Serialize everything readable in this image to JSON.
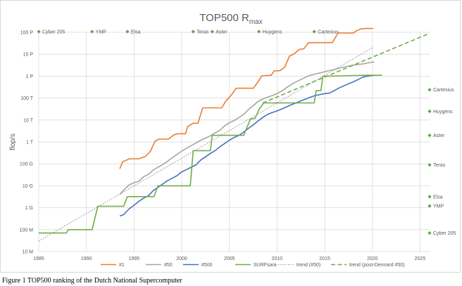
{
  "chart_data": {
    "type": "line",
    "title": "TOP500 R",
    "title_subscript": "max",
    "ylabel": "flop/s",
    "xlabel": "",
    "y_scale": "log",
    "xlim": [
      1985,
      2026
    ],
    "ylim": [
      10000000.0,
      1e+17
    ],
    "grid": true,
    "legend_position": "bottom",
    "x_ticks": [
      1985,
      1990,
      1995,
      2000,
      2005,
      2010,
      2015,
      2020,
      2025
    ],
    "y_ticks": [
      {
        "value": 10000000.0,
        "label": "10 M"
      },
      {
        "value": 100000000.0,
        "label": "100 M"
      },
      {
        "value": 1000000000.0,
        "label": "1 G"
      },
      {
        "value": 10000000000.0,
        "label": "10 G"
      },
      {
        "value": 100000000000.0,
        "label": "100 G"
      },
      {
        "value": 1000000000000.0,
        "label": "1 T"
      },
      {
        "value": 10000000000000.0,
        "label": "10 T"
      },
      {
        "value": 100000000000000.0,
        "label": "100 T"
      },
      {
        "value": 1000000000000000.0,
        "label": "1 P"
      },
      {
        "value": 1e+16,
        "label": "10 P"
      },
      {
        "value": 1e+17,
        "label": "100 P"
      }
    ],
    "series": [
      {
        "name": "#1",
        "color": "#ed7d31",
        "style": "solid",
        "points": [
          [
            1993.5,
            59700000000.0
          ],
          [
            1993.8,
            124000000000.0
          ],
          [
            1994.5,
            170000000000.0
          ],
          [
            1995.5,
            170000000000.0
          ],
          [
            1996.2,
            220000000000.0
          ],
          [
            1996.7,
            368000000000.0
          ],
          [
            1997.2,
            1070000000000.0
          ],
          [
            1997.6,
            1340000000000.0
          ],
          [
            1998.6,
            1340000000000.0
          ],
          [
            1999.2,
            2120000000000.0
          ],
          [
            1999.6,
            2380000000000.0
          ],
          [
            2000.4,
            2380000000000.0
          ],
          [
            2000.6,
            4940000000000.0
          ],
          [
            2001.2,
            7200000000000.0
          ],
          [
            2001.7,
            7200000000000.0
          ],
          [
            2002.2,
            35900000000000.0
          ],
          [
            2004.2,
            35900000000000.0
          ],
          [
            2004.6,
            70700000000000.0
          ],
          [
            2005.2,
            137000000000000.0
          ],
          [
            2005.7,
            281000000000000.0
          ],
          [
            2007.5,
            281000000000000.0
          ],
          [
            2007.9,
            478000000000000.0
          ],
          [
            2008.4,
            1030000000000000.0
          ],
          [
            2009.4,
            1100000000000000.0
          ],
          [
            2009.7,
            1760000000000000.0
          ],
          [
            2010.3,
            1760000000000000.0
          ],
          [
            2010.8,
            2570000000000000.0
          ],
          [
            2011.3,
            8160000000000000.0
          ],
          [
            2011.8,
            1.05e+16
          ],
          [
            2012.3,
            1.63e+16
          ],
          [
            2012.8,
            1.76e+16
          ],
          [
            2013.3,
            3.39e+16
          ],
          [
            2015.8,
            3.39e+16
          ],
          [
            2016.4,
            9.3e+16
          ],
          [
            2018.0,
            9.3e+16
          ],
          [
            2018.4,
            1.22e+17
          ],
          [
            2018.8,
            1.44e+17
          ],
          [
            2019.2,
            1.49e+17
          ],
          [
            2020.1,
            1.49e+17
          ]
        ]
      },
      {
        "name": "#50",
        "color": "#a5a5a5",
        "style": "solid",
        "points": [
          [
            1993.5,
            4000000000.0
          ],
          [
            1994.0,
            7000000000.0
          ],
          [
            1994.5,
            11000000000.0
          ],
          [
            1995.0,
            14000000000.0
          ],
          [
            1995.5,
            16000000000.0
          ],
          [
            1996.0,
            26000000000.0
          ],
          [
            1996.5,
            33000000000.0
          ],
          [
            1997.0,
            52000000000.0
          ],
          [
            1997.5,
            70000000000.0
          ],
          [
            1998.0,
            92000000000.0
          ],
          [
            1998.5,
            130000000000.0
          ],
          [
            1999.0,
            190000000000.0
          ],
          [
            1999.5,
            270000000000.0
          ],
          [
            2000.0,
            380000000000.0
          ],
          [
            2000.5,
            520000000000.0
          ],
          [
            2001.0,
            680000000000.0
          ],
          [
            2001.5,
            900000000000.0
          ],
          [
            2002.0,
            1200000000000.0
          ],
          [
            2002.5,
            1500000000000.0
          ],
          [
            2003.0,
            1900000000000.0
          ],
          [
            2003.5,
            2600000000000.0
          ],
          [
            2004.0,
            3400000000000.0
          ],
          [
            2004.5,
            5400000000000.0
          ],
          [
            2005.0,
            7500000000000.0
          ],
          [
            2005.5,
            9500000000000.0
          ],
          [
            2006.0,
            13000000000000.0
          ],
          [
            2006.5,
            18000000000000.0
          ],
          [
            2007.0,
            30000000000000.0
          ],
          [
            2007.5,
            45000000000000.0
          ],
          [
            2008.0,
            70000000000000.0
          ],
          [
            2008.5,
            90000000000000.0
          ],
          [
            2009.0,
            110000000000000.0
          ],
          [
            2009.5,
            130000000000000.0
          ],
          [
            2010.0,
            160000000000000.0
          ],
          [
            2010.5,
            210000000000000.0
          ],
          [
            2011.0,
            300000000000000.0
          ],
          [
            2011.5,
            420000000000000.0
          ],
          [
            2012.0,
            560000000000000.0
          ],
          [
            2012.5,
            700000000000000.0
          ],
          [
            2013.0,
            900000000000000.0
          ],
          [
            2013.5,
            1100000000000000.0
          ],
          [
            2014.0,
            1250000000000000.0
          ],
          [
            2014.5,
            1400000000000000.0
          ],
          [
            2015.0,
            1600000000000000.0
          ],
          [
            2015.5,
            1800000000000000.0
          ],
          [
            2016.0,
            2000000000000000.0
          ],
          [
            2016.5,
            2300000000000000.0
          ],
          [
            2017.0,
            2600000000000000.0
          ],
          [
            2017.5,
            2900000000000000.0
          ],
          [
            2018.0,
            3200000000000000.0
          ],
          [
            2018.5,
            3400000000000000.0
          ],
          [
            2019.0,
            3600000000000000.0
          ],
          [
            2019.5,
            4000000000000000.0
          ],
          [
            2020.2,
            4500000000000000.0
          ]
        ]
      },
      {
        "name": "#500",
        "color": "#4472c4",
        "style": "solid",
        "points": [
          [
            1993.5,
            420000000.0
          ],
          [
            1993.9,
            480000000.0
          ],
          [
            1994.5,
            900000000.0
          ],
          [
            1995.0,
            1300000000.0
          ],
          [
            1995.5,
            1950000000.0
          ],
          [
            1996.0,
            2700000000.0
          ],
          [
            1996.5,
            3500000000.0
          ],
          [
            1997.0,
            6000000000.0
          ],
          [
            1997.5,
            8500000000.0
          ],
          [
            1998.0,
            12000000000.0
          ],
          [
            1998.5,
            17000000000.0
          ],
          [
            1999.0,
            22000000000.0
          ],
          [
            1999.5,
            29000000000.0
          ],
          [
            2000.0,
            43000000000.0
          ],
          [
            2000.5,
            55000000000.0
          ],
          [
            2001.0,
            70000000000.0
          ],
          [
            2001.5,
            90000000000.0
          ],
          [
            2002.0,
            150000000000.0
          ],
          [
            2002.5,
            210000000000.0
          ],
          [
            2003.0,
            300000000000.0
          ],
          [
            2003.5,
            400000000000.0
          ],
          [
            2004.0,
            600000000000.0
          ],
          [
            2004.5,
            850000000000.0
          ],
          [
            2005.0,
            1200000000000.0
          ],
          [
            2005.5,
            1600000000000.0
          ],
          [
            2006.0,
            2000000000000.0
          ],
          [
            2006.5,
            2800000000000.0
          ],
          [
            2007.0,
            4200000000000.0
          ],
          [
            2007.5,
            6000000000000.0
          ],
          [
            2008.0,
            9000000000000.0
          ],
          [
            2008.5,
            13000000000000.0
          ],
          [
            2009.0,
            18000000000000.0
          ],
          [
            2009.5,
            22000000000000.0
          ],
          [
            2010.0,
            26000000000000.0
          ],
          [
            2010.5,
            32000000000000.0
          ],
          [
            2011.0,
            40000000000000.0
          ],
          [
            2011.5,
            50000000000000.0
          ],
          [
            2012.0,
            60000000000000.0
          ],
          [
            2012.5,
            75000000000000.0
          ],
          [
            2013.0,
            90000000000000.0
          ],
          [
            2013.5,
            110000000000000.0
          ],
          [
            2014.0,
            130000000000000.0
          ],
          [
            2014.5,
            145000000000000.0
          ],
          [
            2015.0,
            160000000000000.0
          ],
          [
            2015.5,
            170000000000000.0
          ],
          [
            2016.0,
            220000000000000.0
          ],
          [
            2016.5,
            290000000000000.0
          ],
          [
            2017.0,
            360000000000000.0
          ],
          [
            2017.5,
            450000000000000.0
          ],
          [
            2018.0,
            550000000000000.0
          ],
          [
            2018.5,
            700000000000000.0
          ],
          [
            2019.0,
            900000000000000.0
          ],
          [
            2019.5,
            1000000000000000.0
          ],
          [
            2020.2,
            1100000000000000.0
          ]
        ]
      },
      {
        "name": "SURFsara",
        "color": "#70ad47",
        "style": "solid",
        "points": [
          [
            1985.0,
            70000000.0
          ],
          [
            1987.9,
            70000000.0
          ],
          [
            1988.1,
            100000000.0
          ],
          [
            1990.6,
            100000000.0
          ],
          [
            1991.2,
            1170000000.0
          ],
          [
            1993.9,
            1170000000.0
          ],
          [
            1994.3,
            3200000000.0
          ],
          [
            1997.1,
            3200000000.0
          ],
          [
            1997.5,
            10000000000.0
          ],
          [
            2000.4,
            10000000000.0
          ],
          [
            2000.9,
            10000000000.0
          ],
          [
            2001.2,
            400000000000.0
          ],
          [
            2003.0,
            400000000000.0
          ],
          [
            2003.2,
            2000000000000.0
          ],
          [
            2006.5,
            2000000000000.0
          ],
          [
            2007.2,
            11000000000000.0
          ],
          [
            2007.7,
            12000000000000.0
          ],
          [
            2008.1,
            30000000000000.0
          ],
          [
            2008.6,
            60000000000000.0
          ],
          [
            2013.9,
            60000000000000.0
          ],
          [
            2014.1,
            220000000000000.0
          ],
          [
            2014.6,
            220000000000000.0
          ],
          [
            2014.8,
            1000000000000000.0
          ],
          [
            2015.3,
            1000000000000000.0
          ],
          [
            2019.4,
            1100000000000000.0
          ],
          [
            2021.0,
            1100000000000000.0
          ]
        ]
      },
      {
        "name": "trend (#50)",
        "color": "#909090",
        "style": "dotted",
        "points": [
          [
            1985.0,
            30000000.0
          ],
          [
            2020.0,
            2e+16
          ]
        ]
      },
      {
        "name": "trend (post-Dennard #50)",
        "color": "#70ad47",
        "style": "dashed",
        "points": [
          [
            2008.5,
            60000000000000.0
          ],
          [
            2026.0,
            9e+16
          ]
        ]
      }
    ],
    "annotations_top": [
      {
        "x": 1985.0,
        "label": "Cyber 205"
      },
      {
        "x": 1990.6,
        "label": "YMP"
      },
      {
        "x": 1994.3,
        "label": "Elsa"
      },
      {
        "x": 2001.2,
        "label": "Teras"
      },
      {
        "x": 2003.2,
        "label": "Aster"
      },
      {
        "x": 2008.1,
        "label": "Huygens"
      },
      {
        "x": 2013.9,
        "label": "Cartesius"
      }
    ],
    "annotations_right": [
      {
        "y": 240000000000000.0,
        "label": "Cartesius"
      },
      {
        "y": 25000000000000.0,
        "label": "Huygens"
      },
      {
        "y": 2000000000000.0,
        "label": "Aster"
      },
      {
        "y": 90000000000.0,
        "label": "Teras"
      },
      {
        "y": 3200000000.0,
        "label": "Elsa"
      },
      {
        "y": 1200000000.0,
        "label": "YMP"
      },
      {
        "y": 70000000.0,
        "label": "Cyber 205"
      }
    ],
    "marker_color": "#5aa845"
  },
  "caption": "Figure 1 TOP500 ranking of the Dutch National Supercomputer"
}
